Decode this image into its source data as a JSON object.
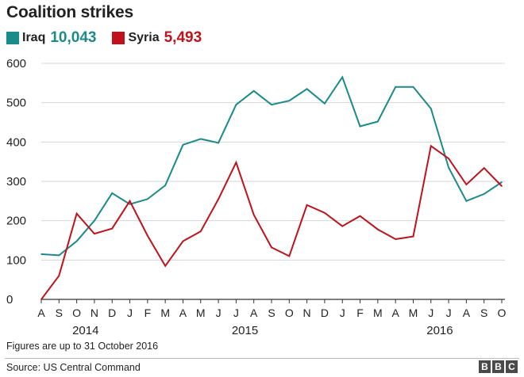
{
  "title": "Coalition strikes",
  "legend": [
    {
      "label": "Iraq",
      "total": "10,043",
      "color": "#1a8a8a"
    },
    {
      "label": "Syria",
      "total": "5,493",
      "color": "#c0121b"
    }
  ],
  "note": "Figures are up to 31 October 2016",
  "source": "Source: US Central Command",
  "logo": [
    "B",
    "B",
    "C"
  ],
  "chart_data": {
    "type": "line",
    "title": "Coalition strikes",
    "xlabel": "",
    "ylabel": "",
    "ylim": [
      0,
      600
    ],
    "yticks": [
      0,
      100,
      200,
      300,
      400,
      500,
      600
    ],
    "grid": true,
    "legend_position": "top-left",
    "categories": [
      "A",
      "S",
      "O",
      "N",
      "D",
      "J",
      "F",
      "M",
      "A",
      "M",
      "J",
      "J",
      "A",
      "S",
      "O",
      "N",
      "D",
      "J",
      "F",
      "M",
      "A",
      "M",
      "J",
      "J",
      "A",
      "S",
      "O"
    ],
    "years": [
      {
        "label": "2014",
        "center_index": 2.5
      },
      {
        "label": "2015",
        "center_index": 11.5
      },
      {
        "label": "2016",
        "center_index": 22.5
      }
    ],
    "series": [
      {
        "name": "Iraq",
        "color": "#1a8a8a",
        "values": [
          115,
          112,
          148,
          200,
          270,
          242,
          255,
          290,
          393,
          408,
          398,
          495,
          530,
          495,
          505,
          535,
          498,
          565,
          440,
          452,
          540,
          540,
          485,
          335,
          250,
          268,
          298
        ]
      },
      {
        "name": "Syria",
        "color": "#c0121b",
        "values": [
          0,
          60,
          218,
          167,
          180,
          250,
          162,
          85,
          148,
          173,
          255,
          348,
          215,
          132,
          110,
          240,
          220,
          186,
          212,
          178,
          153,
          160,
          390,
          358,
          292,
          334,
          288
        ]
      }
    ]
  }
}
